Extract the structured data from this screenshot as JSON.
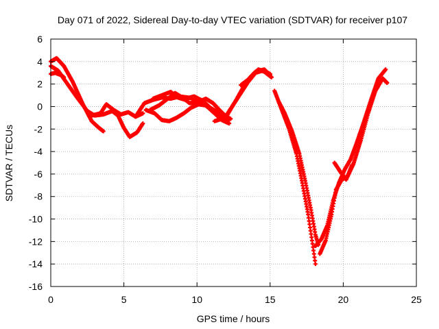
{
  "chart_data": {
    "type": "scatter",
    "title": "Day 071 of 2022, Sidereal Day-to-day VTEC variation (SDTVAR) for receiver p107",
    "xlabel": "GPS time / hours",
    "ylabel": "SDTVAR / TECUs",
    "xlim": [
      0,
      25
    ],
    "ylim": [
      -16,
      6
    ],
    "xticks": [
      0,
      5,
      10,
      15,
      20,
      25
    ],
    "xtick_labels": [
      "0",
      "5",
      "10",
      "15",
      "20",
      "25"
    ],
    "yticks": [
      -16,
      -14,
      -12,
      -10,
      -8,
      -6,
      -4,
      -2,
      0,
      2,
      4,
      6
    ],
    "ytick_labels": [
      "-16",
      "-14",
      "-12",
      "-10",
      "-8",
      "-6",
      "-4",
      "-2",
      "0",
      "2",
      "4",
      "6"
    ],
    "grid": true,
    "marker_color": "#ff0000",
    "marker": "plus",
    "series": [
      {
        "name": "track-1",
        "x": [
          0.0,
          0.4,
          0.9,
          1.5,
          2.2,
          2.8,
          3.3,
          3.6
        ],
        "y": [
          4.0,
          4.3,
          3.6,
          2.2,
          0.2,
          -1.3,
          -1.9,
          -2.2
        ]
      },
      {
        "name": "track-2",
        "x": [
          0.0,
          0.5,
          1.2,
          1.8,
          2.5,
          3.0,
          3.6,
          4.2,
          4.6,
          5.0,
          5.4,
          5.9,
          6.3
        ],
        "y": [
          3.6,
          3.2,
          1.9,
          0.8,
          -0.4,
          -0.8,
          -0.7,
          -0.4,
          -0.8,
          -1.9,
          -2.7,
          -2.3,
          -1.5
        ]
      },
      {
        "name": "track-3",
        "x": [
          0.0,
          0.3,
          0.7,
          0.9
        ],
        "y": [
          2.9,
          3.0,
          2.8,
          2.6
        ]
      },
      {
        "name": "track-4",
        "x": [
          2.8,
          3.4,
          3.8,
          4.3,
          4.8,
          5.3,
          5.8,
          6.3
        ],
        "y": [
          -0.8,
          -0.6,
          0.2,
          -0.3,
          -0.7,
          -0.5,
          -0.9,
          -0.6
        ]
      },
      {
        "name": "track-5",
        "x": [
          5.8,
          6.4,
          7.0,
          7.6,
          8.2,
          8.8,
          9.4,
          10.0,
          10.6,
          11.2,
          11.7,
          12.2
        ],
        "y": [
          -0.9,
          0.3,
          0.6,
          0.8,
          0.7,
          0.9,
          0.8,
          0.6,
          0.1,
          -0.6,
          -1.2,
          -1.5
        ]
      },
      {
        "name": "track-6",
        "x": [
          6.5,
          7.1,
          7.6,
          8.1,
          8.6,
          9.1,
          9.6,
          10.1,
          10.6,
          11.1,
          11.6,
          12.0
        ],
        "y": [
          -0.3,
          -0.6,
          -1.2,
          -1.3,
          -1.0,
          -0.6,
          -0.1,
          0.2,
          0.1,
          -0.3,
          -0.7,
          -0.9
        ]
      },
      {
        "name": "track-7",
        "x": [
          6.8,
          7.4,
          8.0,
          8.5,
          9.0,
          9.5,
          10.1,
          10.6,
          11.1,
          11.6,
          12.0,
          12.3
        ],
        "y": [
          -0.3,
          0.1,
          0.7,
          1.2,
          0.8,
          0.3,
          0.4,
          0.7,
          0.3,
          -0.4,
          -0.9,
          -1.1
        ]
      },
      {
        "name": "track-8",
        "x": [
          7.0,
          7.6,
          8.2,
          8.7,
          9.2
        ],
        "y": [
          0.7,
          1.0,
          1.3,
          0.8,
          0.6
        ]
      },
      {
        "name": "track-9",
        "x": [
          9.2,
          9.8,
          10.4,
          10.9,
          11.4,
          11.9,
          12.2
        ],
        "y": [
          0.7,
          0.9,
          0.5,
          -0.1,
          -0.5,
          -1.0,
          -1.2
        ]
      },
      {
        "name": "track-10",
        "x": [
          11.2,
          11.9,
          12.6,
          13.2,
          13.7,
          14.2,
          14.6,
          15.1
        ],
        "y": [
          -1.3,
          -1.0,
          0.4,
          1.8,
          2.7,
          3.3,
          3.1,
          2.6
        ]
      },
      {
        "name": "track-11",
        "x": [
          12.0,
          12.5,
          13.0,
          13.5,
          14.0,
          14.5,
          15.0
        ],
        "y": [
          -0.9,
          0.2,
          1.2,
          2.2,
          3.0,
          3.2,
          2.9
        ]
      },
      {
        "name": "track-12",
        "x": [
          13.0,
          13.5,
          14.0,
          14.6,
          15.0
        ],
        "y": [
          1.9,
          2.4,
          3.1,
          3.3,
          2.8
        ]
      },
      {
        "name": "track-13",
        "x": [
          15.3,
          15.8,
          16.3,
          16.8,
          17.2,
          17.6,
          17.9,
          18.1
        ],
        "y": [
          1.4,
          -0.3,
          -2.0,
          -4.2,
          -6.8,
          -9.6,
          -12.2,
          -14.0
        ]
      },
      {
        "name": "track-14",
        "x": [
          15.6,
          16.0,
          16.5,
          17.0,
          17.4,
          17.8,
          18.1,
          18.3
        ],
        "y": [
          0.4,
          -0.6,
          -2.2,
          -4.2,
          -6.6,
          -9.2,
          -11.4,
          -12.3
        ]
      },
      {
        "name": "track-15",
        "x": [
          18.1,
          18.5,
          18.9,
          19.3,
          19.7,
          20.1,
          20.5,
          20.9,
          21.4,
          21.9,
          22.4,
          22.9
        ],
        "y": [
          -12.4,
          -11.8,
          -10.6,
          -8.4,
          -6.8,
          -5.6,
          -4.7,
          -3.3,
          -1.4,
          0.6,
          2.5,
          3.3
        ]
      },
      {
        "name": "track-16",
        "x": [
          18.4,
          18.8,
          19.2,
          19.5,
          19.9,
          20.3,
          20.7,
          21.2,
          21.7,
          22.2,
          22.7,
          23.0
        ],
        "y": [
          -13.1,
          -11.9,
          -9.6,
          -7.4,
          -6.5,
          -6.2,
          -5.1,
          -3.0,
          -0.6,
          1.4,
          2.5,
          2.1
        ]
      },
      {
        "name": "track-17",
        "x": [
          19.4,
          19.8,
          20.2,
          20.6
        ],
        "y": [
          -5.0,
          -5.8,
          -6.5,
          -5.2
        ]
      }
    ]
  }
}
